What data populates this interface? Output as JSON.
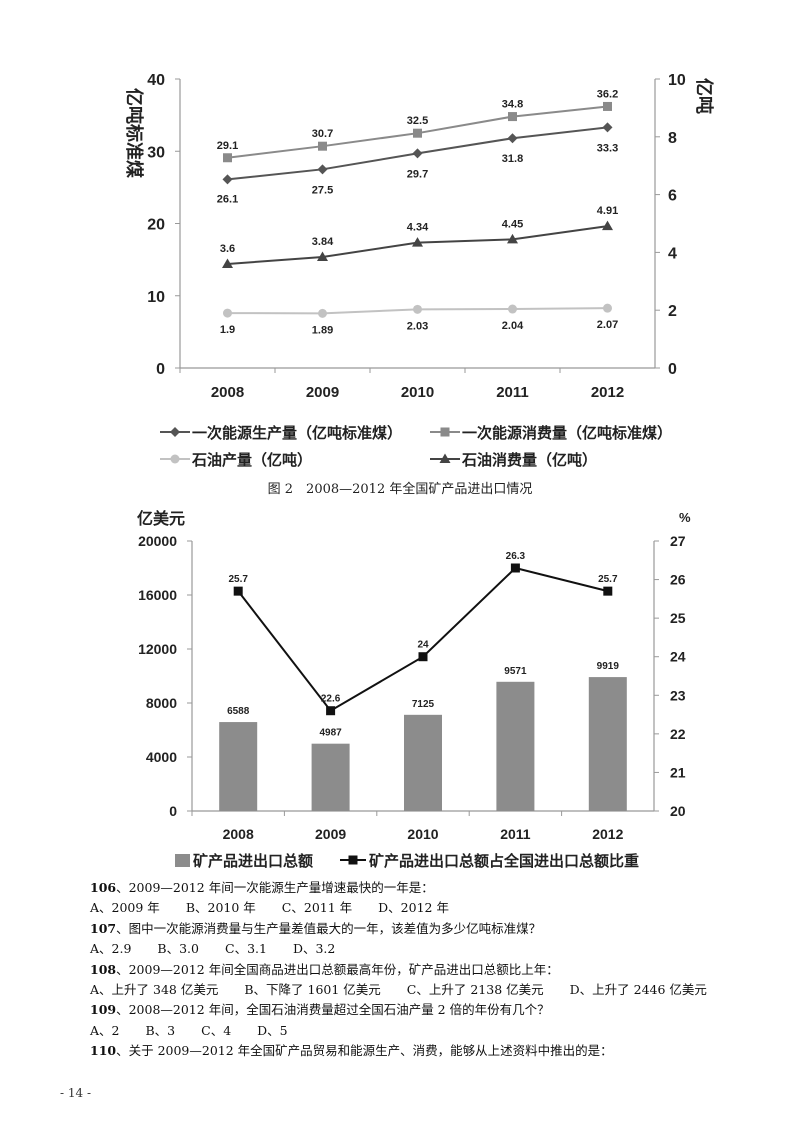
{
  "chart_data": [
    {
      "type": "line",
      "categories": [
        "2008",
        "2009",
        "2010",
        "2011",
        "2012"
      ],
      "ylabel": "亿吨标准煤",
      "ylabel_right": "亿吨",
      "ylim": [
        0,
        40
      ],
      "yticks": [
        "0",
        "10",
        "20",
        "30",
        "40"
      ],
      "ylim_right": [
        0,
        10
      ],
      "yticks_right": [
        "0",
        "2",
        "4",
        "6",
        "8",
        "10"
      ],
      "grid": false,
      "legend_position": "bottom",
      "series": [
        {
          "name": "一次能源生产量（亿吨标准煤）",
          "axis": "left",
          "marker": "diamond",
          "color": "#555555",
          "values": [
            26.1,
            27.5,
            29.7,
            31.8,
            33.3
          ],
          "labels": [
            "26.1",
            "27.5",
            "29.7",
            "31.8",
            "33.3"
          ]
        },
        {
          "name": "一次能源消费量（亿吨标准煤）",
          "axis": "left",
          "marker": "square",
          "color": "#8a8a8a",
          "values": [
            29.1,
            30.7,
            32.5,
            34.8,
            36.2
          ],
          "labels": [
            "29.1",
            "30.7",
            "32.5",
            "34.8",
            "36.2"
          ]
        },
        {
          "name": "石油产量（亿吨）",
          "axis": "right",
          "marker": "circle",
          "color": "#c2c2c2",
          "values": [
            1.9,
            1.89,
            2.03,
            2.04,
            2.07
          ],
          "labels": [
            "1.9",
            "1.89",
            "2.03",
            "2.04",
            "2.07"
          ]
        },
        {
          "name": "石油消费量（亿吨）",
          "axis": "right",
          "marker": "triangle",
          "color": "#444444",
          "values": [
            3.6,
            3.84,
            4.34,
            4.45,
            4.91
          ],
          "labels": [
            "3.6",
            "3.84",
            "4.34",
            "4.45",
            "4.91"
          ]
        }
      ]
    },
    {
      "type": "bar",
      "caption": "图 2　2008—2012 年全国矿产品进出口情况",
      "categories": [
        "2008",
        "2009",
        "2010",
        "2011",
        "2012"
      ],
      "ylabel": "亿美元",
      "ylabel_right": "%",
      "ylim": [
        0,
        20000
      ],
      "yticks": [
        "0",
        "4000",
        "8000",
        "12000",
        "16000",
        "20000"
      ],
      "ylim_right": [
        20,
        27
      ],
      "yticks_right": [
        "20",
        "21",
        "22",
        "23",
        "24",
        "25",
        "26",
        "27"
      ],
      "grid": false,
      "legend_position": "bottom",
      "series": [
        {
          "name": "矿产品进出口总额",
          "type": "bar",
          "axis": "left",
          "color": "#8c8c8c",
          "values": [
            6588,
            4987,
            7125,
            9571,
            9919
          ],
          "labels": [
            "6588",
            "4987",
            "7125",
            "9571",
            "9919"
          ]
        },
        {
          "name": "矿产品进出口总额占全国进出口总额比重",
          "type": "line",
          "axis": "right",
          "marker": "square",
          "color": "#111111",
          "values": [
            25.7,
            22.6,
            24,
            26.3,
            25.7
          ],
          "labels": [
            "25.7",
            "22.6",
            "24",
            "26.3",
            "25.7"
          ]
        }
      ]
    }
  ],
  "questions": [
    {
      "num": "106",
      "text": "、2009—2012 年间一次能源生产量增速最快的一年是：",
      "options": [
        "A、2009 年",
        "B、2010 年",
        "C、2011 年",
        "D、2012 年"
      ]
    },
    {
      "num": "107",
      "text": "、图中一次能源消费量与生产量差值最大的一年，该差值为多少亿吨标准煤？",
      "options": [
        "A、2.9",
        "B、3.0",
        "C、3.1",
        "D、3.2"
      ]
    },
    {
      "num": "108",
      "text": "、2009—2012 年间全国商品进出口总额最高年份，矿产品进出口总额比上年：",
      "options": [
        "A、上升了 348 亿美元",
        "B、下降了 1601 亿美元",
        "C、上升了 2138 亿美元",
        "D、上升了 2446 亿美元"
      ]
    },
    {
      "num": "109",
      "text": "、2008—2012 年间，全国石油消费量超过全国石油产量 2 倍的年份有几个？",
      "options": [
        "A、2",
        "B、3",
        "C、4",
        "D、5"
      ]
    },
    {
      "num": "110",
      "text": "、关于 2009—2012 年全国矿产品贸易和能源生产、消费，能够从上述资料中推出的是：",
      "options": []
    }
  ],
  "page_number": "- 14 -"
}
